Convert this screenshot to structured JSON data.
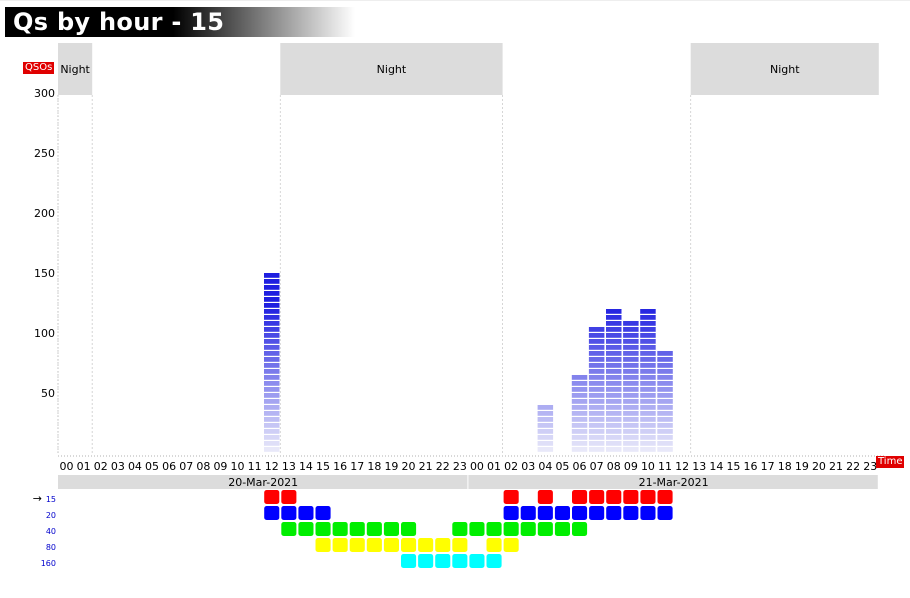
{
  "title": "Qs by hour - 15",
  "y_axis_tag": "QSOs",
  "x_axis_tag": "Time",
  "night_label": "Night",
  "chart_data": {
    "type": "bar",
    "title": "Qs by hour - 15",
    "ylabel": "QSOs",
    "xlabel": "Time",
    "ylim": [
      0,
      300
    ],
    "yticks": [
      50,
      100,
      150,
      200,
      250,
      300
    ],
    "hour_labels": [
      "00",
      "01",
      "02",
      "03",
      "04",
      "05",
      "06",
      "07",
      "08",
      "09",
      "10",
      "11",
      "12",
      "13",
      "14",
      "15",
      "16",
      "17",
      "18",
      "19",
      "20",
      "21",
      "22",
      "23"
    ],
    "days": [
      "20-Mar-2021",
      "21-Mar-2021"
    ],
    "bar_color": "#1f1fe0",
    "bars": [
      {
        "day": 0,
        "hour": 12,
        "value": 150
      },
      {
        "day": 1,
        "hour": 4,
        "value": 40
      },
      {
        "day": 1,
        "hour": 6,
        "value": 65
      },
      {
        "day": 1,
        "hour": 7,
        "value": 105
      },
      {
        "day": 1,
        "hour": 8,
        "value": 120
      },
      {
        "day": 1,
        "hour": 9,
        "value": 110
      },
      {
        "day": 1,
        "hour": 10,
        "value": 120
      },
      {
        "day": 1,
        "hour": 11,
        "value": 85
      }
    ],
    "night": [
      {
        "from_day": 0,
        "from_hour": 0,
        "to_day": 0,
        "to_hour": 2
      },
      {
        "from_day": 0,
        "from_hour": 13,
        "to_day": 1,
        "to_hour": 2
      },
      {
        "from_day": 1,
        "from_hour": 13,
        "to_day": 1,
        "to_hour": 24
      }
    ],
    "bands": [
      {
        "label": "15",
        "color": "#ff0000",
        "current": true,
        "hours": [
          [
            0,
            12
          ],
          [
            0,
            13
          ],
          [
            1,
            2
          ],
          [
            1,
            4
          ],
          [
            1,
            6
          ],
          [
            1,
            7
          ],
          [
            1,
            8
          ],
          [
            1,
            9
          ],
          [
            1,
            10
          ],
          [
            1,
            11
          ]
        ]
      },
      {
        "label": "20",
        "color": "#0000ff",
        "current": false,
        "hours": [
          [
            0,
            12
          ],
          [
            0,
            13
          ],
          [
            0,
            14
          ],
          [
            0,
            15
          ],
          [
            1,
            2
          ],
          [
            1,
            3
          ],
          [
            1,
            4
          ],
          [
            1,
            5
          ],
          [
            1,
            6
          ],
          [
            1,
            7
          ],
          [
            1,
            8
          ],
          [
            1,
            9
          ],
          [
            1,
            10
          ],
          [
            1,
            11
          ]
        ]
      },
      {
        "label": "40",
        "color": "#00ee00",
        "current": false,
        "hours": [
          [
            0,
            13
          ],
          [
            0,
            14
          ],
          [
            0,
            15
          ],
          [
            0,
            16
          ],
          [
            0,
            17
          ],
          [
            0,
            18
          ],
          [
            0,
            19
          ],
          [
            0,
            20
          ],
          [
            0,
            23
          ],
          [
            1,
            0
          ],
          [
            1,
            1
          ],
          [
            1,
            2
          ],
          [
            1,
            3
          ],
          [
            1,
            4
          ],
          [
            1,
            5
          ],
          [
            1,
            6
          ]
        ]
      },
      {
        "label": "80",
        "color": "#ffff00",
        "current": false,
        "hours": [
          [
            0,
            15
          ],
          [
            0,
            16
          ],
          [
            0,
            17
          ],
          [
            0,
            18
          ],
          [
            0,
            19
          ],
          [
            0,
            20
          ],
          [
            0,
            21
          ],
          [
            0,
            22
          ],
          [
            0,
            23
          ],
          [
            1,
            1
          ],
          [
            1,
            2
          ]
        ]
      },
      {
        "label": "160",
        "color": "#00ffff",
        "current": false,
        "hours": [
          [
            0,
            20
          ],
          [
            0,
            21
          ],
          [
            0,
            22
          ],
          [
            0,
            23
          ],
          [
            1,
            0
          ],
          [
            1,
            1
          ]
        ]
      }
    ]
  }
}
